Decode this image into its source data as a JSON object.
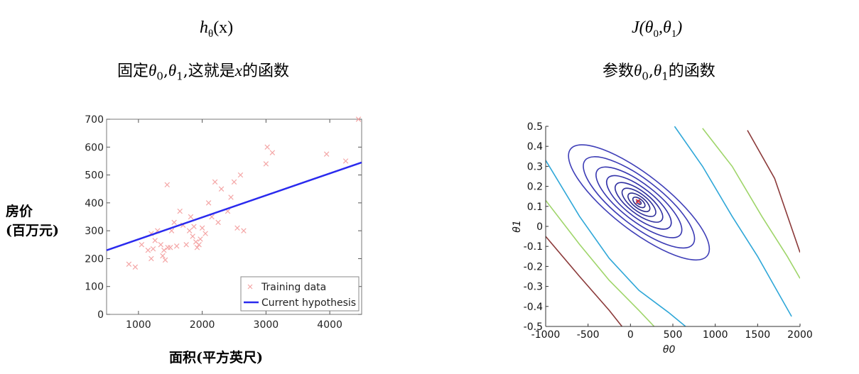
{
  "left_header": {
    "formula": {
      "base": "h",
      "sub": "θ",
      "rest": "(x)"
    },
    "desc_prefix": "固定",
    "desc_p0": "θ",
    "desc_p0_sub": "0",
    "desc_sep": ",",
    "desc_p1": "θ",
    "desc_p1_sub": "1",
    "desc_suffix_1": ",这就是",
    "desc_var": "x",
    "desc_suffix_2": "的函数"
  },
  "right_header": {
    "formula_prefix": "J(",
    "formula_p0": "θ",
    "formula_p0_sub": "0",
    "formula_sep": ",",
    "formula_p1": "θ",
    "formula_p1_sub": "1",
    "formula_suffix": ")",
    "desc_prefix": "参数",
    "desc_p0": "θ",
    "desc_p0_sub": "0",
    "desc_sep": ",",
    "desc_p1": "θ",
    "desc_p1_sub": "1",
    "desc_suffix": "的函数"
  },
  "chart_data": [
    {
      "type": "scatter",
      "ylabel_line1": "房价",
      "ylabel_line2": "(百万元)",
      "xlabel": "面积(平方英尺)",
      "xlim": [
        500,
        4500
      ],
      "ylim": [
        0,
        700
      ],
      "xticks": [
        1000,
        2000,
        3000,
        4000
      ],
      "yticks": [
        0,
        100,
        200,
        300,
        400,
        500,
        600,
        700
      ],
      "series": [
        {
          "name": "Training data",
          "marker": "x",
          "color": "#f4a6a6",
          "points": [
            [
              850,
              180
            ],
            [
              950,
              170
            ],
            [
              1050,
              250
            ],
            [
              1150,
              230
            ],
            [
              1200,
              290
            ],
            [
              1200,
              200
            ],
            [
              1230,
              235
            ],
            [
              1260,
              265
            ],
            [
              1300,
              300
            ],
            [
              1350,
              250
            ],
            [
              1380,
              210
            ],
            [
              1400,
              230
            ],
            [
              1420,
              195
            ],
            [
              1450,
              465
            ],
            [
              1460,
              240
            ],
            [
              1500,
              240
            ],
            [
              1520,
              300
            ],
            [
              1560,
              330
            ],
            [
              1600,
              245
            ],
            [
              1650,
              370
            ],
            [
              1700,
              320
            ],
            [
              1750,
              250
            ],
            [
              1800,
              300
            ],
            [
              1820,
              350
            ],
            [
              1850,
              280
            ],
            [
              1870,
              315
            ],
            [
              1900,
              260
            ],
            [
              1920,
              240
            ],
            [
              1950,
              250
            ],
            [
              1970,
              270
            ],
            [
              2000,
              310
            ],
            [
              2050,
              290
            ],
            [
              2100,
              400
            ],
            [
              2150,
              350
            ],
            [
              2200,
              475
            ],
            [
              2250,
              330
            ],
            [
              2300,
              450
            ],
            [
              2400,
              370
            ],
            [
              2450,
              420
            ],
            [
              2500,
              475
            ],
            [
              2550,
              310
            ],
            [
              2600,
              500
            ],
            [
              2650,
              300
            ],
            [
              3000,
              540
            ],
            [
              3020,
              600
            ],
            [
              3100,
              580
            ],
            [
              3950,
              575
            ],
            [
              4250,
              550
            ],
            [
              4450,
              700
            ]
          ]
        },
        {
          "name": "Current hypothesis",
          "type": "line",
          "color": "#2a2aee",
          "x": [
            500,
            4500
          ],
          "y": [
            230,
            545
          ]
        }
      ],
      "legend": "bottom-right"
    },
    {
      "type": "contour",
      "xlabel": "θ0",
      "ylabel": "θ1",
      "xlim": [
        -1000,
        2000
      ],
      "ylim": [
        -0.5,
        0.5
      ],
      "xticks": [
        -1000,
        -500,
        0,
        500,
        1000,
        1500,
        2000
      ],
      "xtick_labels": [
        "-1000",
        "-500",
        "0",
        "500",
        "1000",
        "1500",
        "2000"
      ],
      "yticks": [
        -0.5,
        -0.4,
        -0.3,
        -0.2,
        -0.1,
        0,
        0.1,
        0.2,
        0.3,
        0.4,
        0.5
      ],
      "ytick_labels": [
        "-0.5",
        "-0.4",
        "-0.3",
        "-0.2",
        "-0.1",
        "0",
        "0.1",
        "0.2",
        "0.3",
        "0.4",
        "0.5"
      ],
      "minimum": {
        "theta0": 90,
        "theta1": 0.125,
        "color": "#e83030"
      },
      "center": {
        "theta0": 100,
        "theta1": 0.12
      },
      "levels": [
        {
          "a": 20,
          "b": 0.014,
          "color": "#2b2b8f"
        },
        {
          "a": 55,
          "b": 0.032,
          "color": "#2b2b8f"
        },
        {
          "a": 100,
          "b": 0.052,
          "color": "#2b2b8f"
        },
        {
          "a": 155,
          "b": 0.075,
          "color": "#2e2e9a"
        },
        {
          "a": 220,
          "b": 0.1,
          "color": "#3030a0"
        },
        {
          "a": 300,
          "b": 0.13,
          "color": "#3333aa"
        },
        {
          "a": 400,
          "b": 0.165,
          "color": "#3838b0"
        },
        {
          "a": 520,
          "b": 0.205,
          "color": "#3b3bb5"
        },
        {
          "a": 660,
          "b": 0.25,
          "color": "#3f3fb8"
        }
      ],
      "diagonal_lines": [
        {
          "color": "#2fa7d8",
          "pts": [
            [
              -1000,
              0.33
            ],
            [
              -600,
              0.05
            ],
            [
              -250,
              -0.16
            ],
            [
              100,
              -0.32
            ],
            [
              450,
              -0.43
            ],
            [
              650,
              -0.5
            ]
          ]
        },
        {
          "color": "#2fa7d8",
          "pts": [
            [
              520,
              0.5
            ],
            [
              850,
              0.3
            ],
            [
              1200,
              0.05
            ],
            [
              1500,
              -0.15
            ],
            [
              1700,
              -0.3
            ],
            [
              1900,
              -0.45
            ]
          ]
        },
        {
          "color": "#9fd56a",
          "pts": [
            [
              -1000,
              0.13
            ],
            [
              -600,
              -0.09
            ],
            [
              -250,
              -0.27
            ],
            [
              100,
              -0.42
            ],
            [
              280,
              -0.5
            ]
          ]
        },
        {
          "color": "#9fd56a",
          "pts": [
            [
              850,
              0.49
            ],
            [
              1200,
              0.3
            ],
            [
              1550,
              0.05
            ],
            [
              1850,
              -0.15
            ],
            [
              2000,
              -0.26
            ]
          ]
        },
        {
          "color": "#8b3a3a",
          "pts": [
            [
              -1000,
              -0.05
            ],
            [
              -600,
              -0.25
            ],
            [
              -250,
              -0.42
            ],
            [
              -100,
              -0.5
            ]
          ]
        },
        {
          "color": "#8b3a3a",
          "pts": [
            [
              1380,
              0.48
            ],
            [
              1700,
              0.24
            ],
            [
              2000,
              -0.13
            ]
          ]
        }
      ]
    }
  ]
}
